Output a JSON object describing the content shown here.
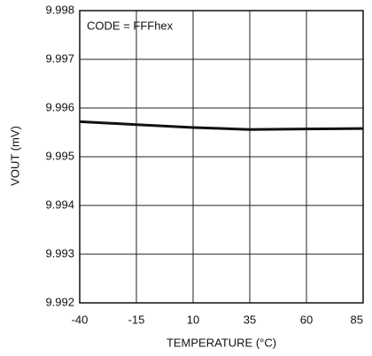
{
  "chart_data": {
    "type": "line",
    "annotation": "CODE = FFFhex",
    "x_label": "TEMPERATURE (°C)",
    "y_label": "VOUT (mV)",
    "x": [
      -40,
      -15,
      10,
      35,
      60,
      85
    ],
    "series": [
      {
        "name": "VOUT",
        "color": "#111111",
        "values": [
          9.99572,
          9.99566,
          9.9956,
          9.99556,
          9.99557,
          9.99558
        ]
      }
    ],
    "xlim": [
      -40,
      85
    ],
    "xticks": [
      -40,
      -15,
      10,
      35,
      60,
      85
    ],
    "ylim": [
      9.992,
      9.998
    ],
    "yticks": [
      9.992,
      9.993,
      9.994,
      9.995,
      9.996,
      9.997,
      9.998
    ],
    "grid": true
  }
}
